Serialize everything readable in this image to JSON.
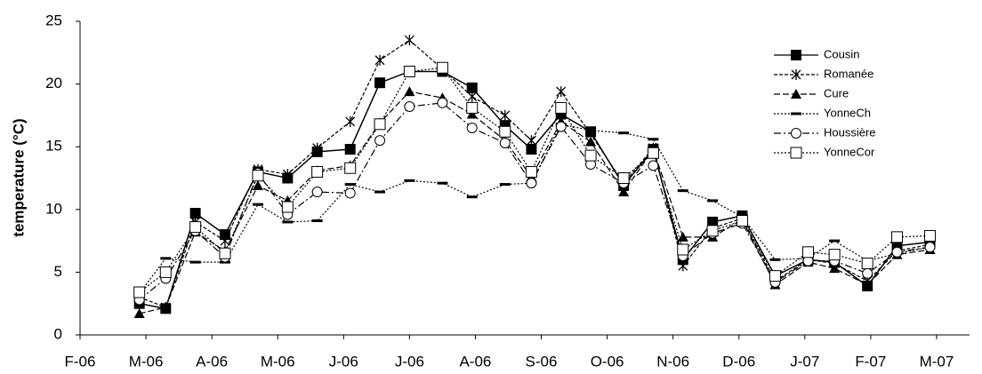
{
  "chart_data": {
    "type": "line",
    "ylabel": "temperature (°C)",
    "x": [
      0.9,
      1.3,
      1.75,
      2.2,
      2.7,
      3.15,
      3.6,
      4.1,
      4.55,
      5.0,
      5.5,
      5.95,
      6.45,
      6.85,
      7.3,
      7.75,
      8.25,
      8.7,
      9.15,
      9.6,
      10.05,
      10.55,
      11.05,
      11.45,
      11.95,
      12.4,
      12.9
    ],
    "xlim": [
      0,
      13.5
    ],
    "xticks": [
      {
        "value": 0,
        "label": "F-06"
      },
      {
        "value": 1,
        "label": "M-06"
      },
      {
        "value": 2,
        "label": "A-06"
      },
      {
        "value": 3,
        "label": "M-06"
      },
      {
        "value": 4,
        "label": "J-06"
      },
      {
        "value": 5,
        "label": "J-06"
      },
      {
        "value": 6,
        "label": "A-06"
      },
      {
        "value": 7,
        "label": "S-06"
      },
      {
        "value": 8,
        "label": "O-06"
      },
      {
        "value": 9,
        "label": "N-06"
      },
      {
        "value": 10,
        "label": "D-06"
      },
      {
        "value": 11,
        "label": "J-07"
      },
      {
        "value": 12,
        "label": "F-07"
      },
      {
        "value": 13,
        "label": "M-07"
      }
    ],
    "ylim": [
      0,
      25
    ],
    "yticks": [
      0,
      5,
      10,
      15,
      20,
      25
    ],
    "series": [
      {
        "name": "Cousin",
        "color": "#000000",
        "marker": "filled-square",
        "dash": "solid",
        "values": [
          2.5,
          2.1,
          9.7,
          8.0,
          13.0,
          12.5,
          14.6,
          14.8,
          20.1,
          21.0,
          21.0,
          19.7,
          16.7,
          14.8,
          17.6,
          16.2,
          11.9,
          14.8,
          6.0,
          9.0,
          9.5,
          4.7,
          6.0,
          5.8,
          3.9,
          7.1,
          7.4
        ]
      },
      {
        "name": "Romanée",
        "color": "#000000",
        "marker": "star",
        "dash": "dashed",
        "values": [
          3.0,
          2.2,
          9.0,
          7.5,
          13.2,
          12.8,
          14.9,
          17.0,
          21.9,
          23.5,
          21.2,
          19.0,
          17.5,
          15.5,
          19.4,
          16.0,
          12.1,
          14.9,
          5.5,
          8.5,
          9.3,
          4.3,
          6.0,
          5.7,
          4.3,
          6.7,
          7.2
        ]
      },
      {
        "name": "Cure",
        "color": "#000000",
        "marker": "filled-triangle",
        "dash": "long-dashed",
        "values": [
          1.7,
          2.2,
          8.2,
          6.7,
          11.9,
          10.7,
          13.1,
          13.5,
          16.9,
          19.4,
          18.9,
          17.6,
          15.5,
          12.6,
          17.0,
          15.4,
          11.4,
          14.8,
          7.8,
          7.8,
          9.2,
          4.0,
          5.8,
          5.3,
          4.0,
          6.4,
          6.8
        ]
      },
      {
        "name": "YonneCh",
        "color": "#000000",
        "marker": "dash",
        "dash": "dotted",
        "values": [
          3.3,
          6.1,
          5.8,
          5.8,
          10.4,
          9.0,
          9.1,
          12.0,
          11.4,
          12.3,
          12.1,
          11.0,
          12.0,
          12.1,
          16.8,
          16.3,
          16.1,
          15.6,
          11.5,
          10.7,
          9.4,
          6.0,
          6.1,
          7.5,
          5.9,
          6.5,
          7.0
        ]
      },
      {
        "name": "Houssière",
        "color": "#000000",
        "marker": "open-circle",
        "dash": "dash-dot",
        "values": [
          2.8,
          4.5,
          8.3,
          6.2,
          12.9,
          9.6,
          11.4,
          11.3,
          15.5,
          18.2,
          18.5,
          16.5,
          15.3,
          12.1,
          16.6,
          13.6,
          12.1,
          13.5,
          6.3,
          8.1,
          8.9,
          4.2,
          5.9,
          5.9,
          4.9,
          6.6,
          7.0
        ]
      },
      {
        "name": "YonneCor",
        "color": "#000000",
        "marker": "open-square",
        "dash": "dotted",
        "values": [
          3.4,
          5.0,
          8.6,
          6.5,
          12.7,
          10.2,
          13.0,
          13.3,
          16.8,
          21.0,
          21.3,
          18.1,
          16.2,
          13.0,
          18.1,
          14.3,
          12.5,
          14.5,
          6.8,
          8.3,
          9.1,
          4.7,
          6.6,
          6.4,
          5.7,
          7.8,
          7.9
        ]
      }
    ],
    "legend": "upper right"
  }
}
